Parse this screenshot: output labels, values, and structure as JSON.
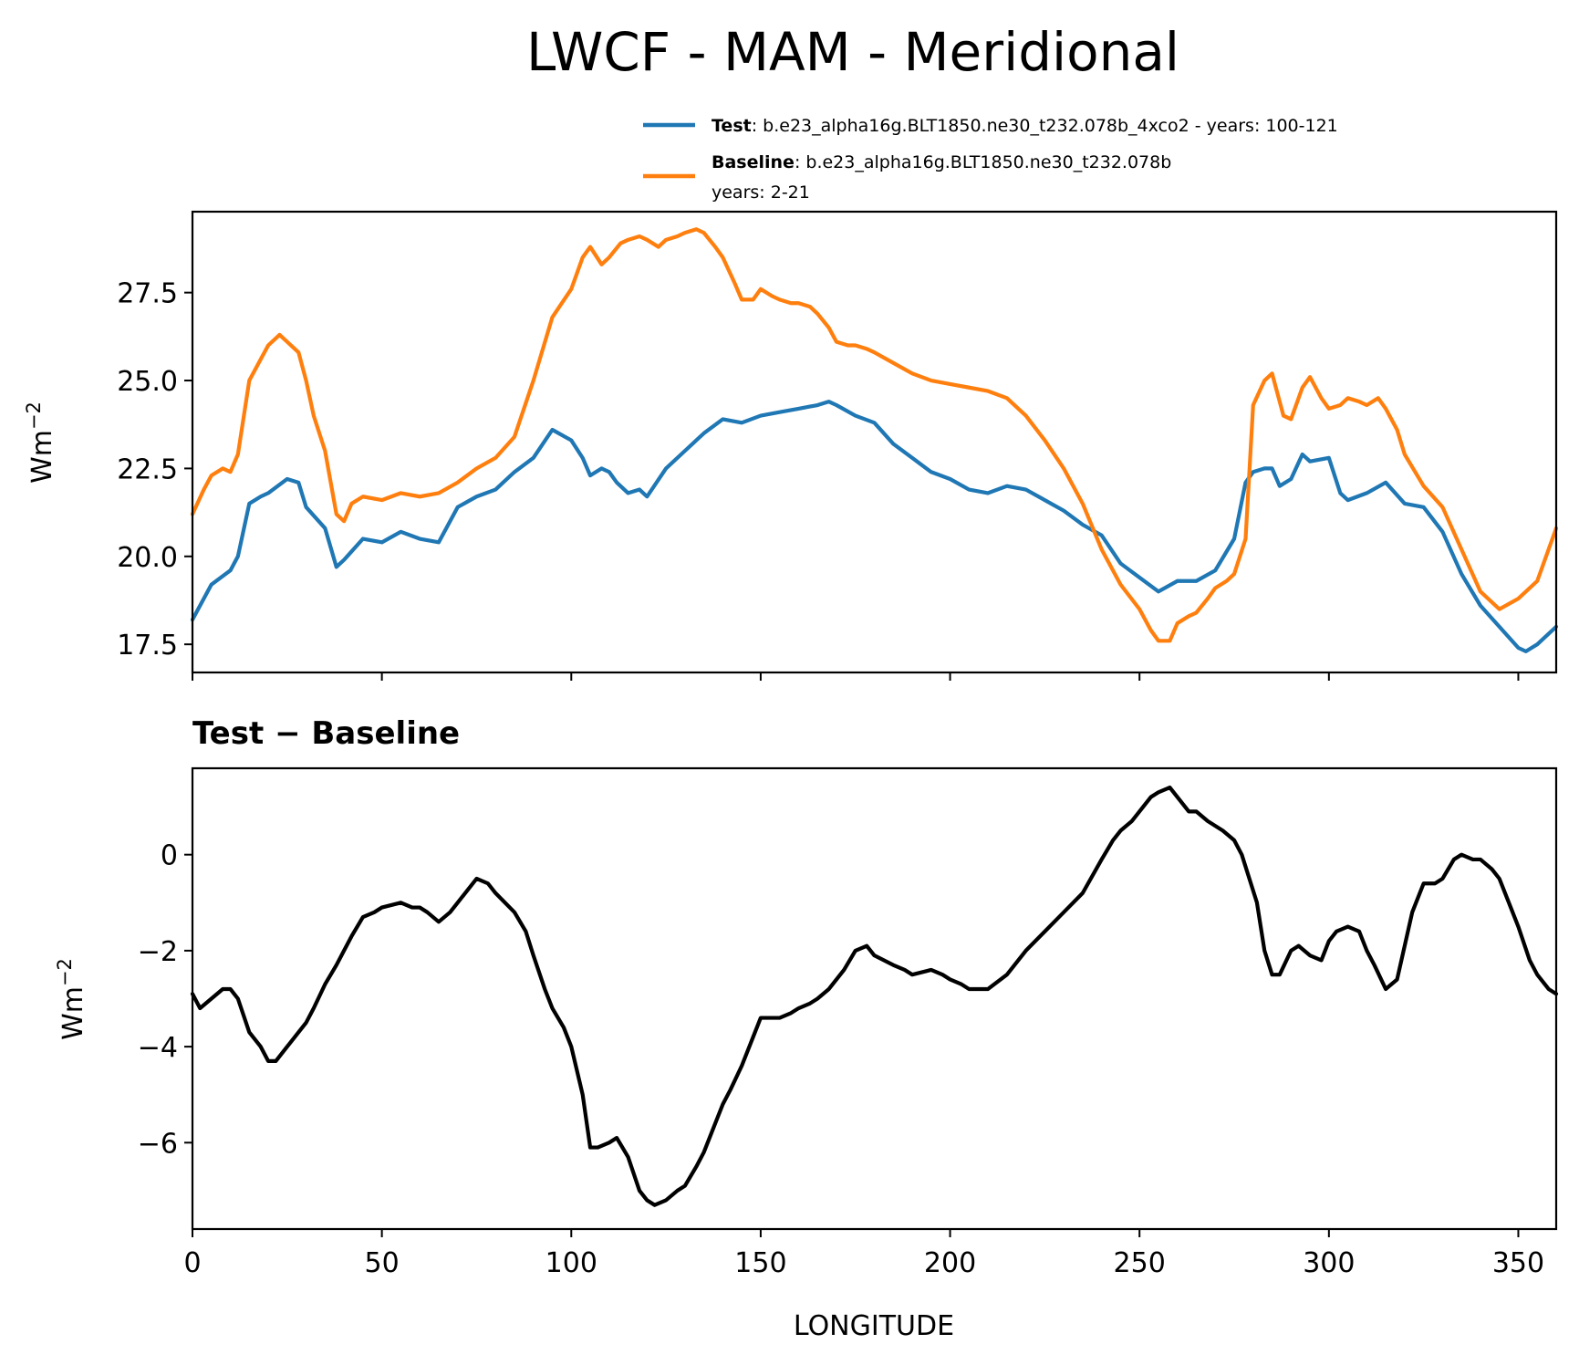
{
  "chart_data": [
    {
      "type": "line",
      "title": "LWCF - MAM - Meridional",
      "ylabel": "Wm",
      "ylabel_exponent": "−2",
      "xlim": [
        0,
        360
      ],
      "ylim": [
        16.7,
        29.8
      ],
      "yticks": [
        17.5,
        20.0,
        22.5,
        25.0,
        27.5
      ],
      "ytick_labels": [
        "17.5",
        "20.0",
        "22.5",
        "25.0",
        "27.5"
      ],
      "xticks": [
        0,
        50,
        100,
        150,
        200,
        250,
        300,
        350
      ],
      "legend": {
        "position": "above-right",
        "test_name": "Test",
        "test_text": ": b.e23_alpha16g.BLT1850.ne30_t232.078b_4xco2 - years: 100-121",
        "baseline_name": "Baseline",
        "baseline_text": ": b.e23_alpha16g.BLT1850.ne30_t232.078b",
        "baseline_text2": "years: 2-21"
      },
      "series": [
        {
          "name": "Test",
          "color": "#1f77b4",
          "x": [
            0,
            5,
            10,
            12,
            15,
            18,
            20,
            25,
            28,
            30,
            35,
            38,
            40,
            45,
            50,
            55,
            60,
            65,
            70,
            75,
            80,
            85,
            90,
            95,
            100,
            103,
            105,
            108,
            110,
            112,
            115,
            118,
            120,
            125,
            130,
            135,
            140,
            145,
            150,
            155,
            160,
            165,
            168,
            170,
            175,
            180,
            185,
            190,
            195,
            200,
            205,
            210,
            215,
            220,
            225,
            230,
            235,
            240,
            245,
            250,
            255,
            260,
            265,
            270,
            275,
            278,
            280,
            283,
            285,
            287,
            290,
            293,
            295,
            300,
            303,
            305,
            310,
            315,
            320,
            325,
            330,
            335,
            340,
            345,
            350,
            352,
            355,
            360
          ],
          "values": [
            18.2,
            19.2,
            19.6,
            20.0,
            21.5,
            21.7,
            21.8,
            22.2,
            22.1,
            21.4,
            20.8,
            19.7,
            19.9,
            20.5,
            20.4,
            20.7,
            20.5,
            20.4,
            21.4,
            21.7,
            21.9,
            22.4,
            22.8,
            23.6,
            23.3,
            22.8,
            22.3,
            22.5,
            22.4,
            22.1,
            21.8,
            21.9,
            21.7,
            22.5,
            23.0,
            23.5,
            23.9,
            23.8,
            24.0,
            24.1,
            24.2,
            24.3,
            24.4,
            24.3,
            24.0,
            23.8,
            23.2,
            22.8,
            22.4,
            22.2,
            21.9,
            21.8,
            22.0,
            21.9,
            21.6,
            21.3,
            20.9,
            20.6,
            19.8,
            19.4,
            19.0,
            19.3,
            19.3,
            19.6,
            20.5,
            22.1,
            22.4,
            22.5,
            22.5,
            22.0,
            22.2,
            22.9,
            22.7,
            22.8,
            21.8,
            21.6,
            21.8,
            22.1,
            21.5,
            21.4,
            20.7,
            19.5,
            18.6,
            18.0,
            17.4,
            17.3,
            17.5,
            18.0
          ]
        },
        {
          "name": "Baseline",
          "color": "#ff7f0e",
          "x": [
            0,
            3,
            5,
            8,
            10,
            12,
            15,
            18,
            20,
            23,
            25,
            28,
            30,
            32,
            35,
            38,
            40,
            42,
            45,
            50,
            55,
            60,
            65,
            70,
            75,
            80,
            85,
            90,
            95,
            100,
            103,
            105,
            108,
            110,
            113,
            115,
            118,
            120,
            123,
            125,
            128,
            130,
            133,
            135,
            138,
            140,
            143,
            145,
            148,
            150,
            153,
            155,
            158,
            160,
            163,
            165,
            168,
            170,
            173,
            175,
            178,
            180,
            185,
            190,
            195,
            200,
            205,
            210,
            215,
            220,
            225,
            230,
            235,
            240,
            245,
            250,
            253,
            255,
            258,
            260,
            263,
            265,
            268,
            270,
            273,
            275,
            278,
            280,
            283,
            285,
            288,
            290,
            293,
            295,
            298,
            300,
            303,
            305,
            308,
            310,
            313,
            315,
            318,
            320,
            325,
            330,
            335,
            340,
            345,
            350,
            355,
            360
          ],
          "values": [
            21.2,
            21.9,
            22.3,
            22.5,
            22.4,
            22.9,
            25.0,
            25.6,
            26.0,
            26.3,
            26.1,
            25.8,
            25.0,
            24.0,
            23.0,
            21.2,
            21.0,
            21.5,
            21.7,
            21.6,
            21.8,
            21.7,
            21.8,
            22.1,
            22.5,
            22.8,
            23.4,
            25.0,
            26.8,
            27.6,
            28.5,
            28.8,
            28.3,
            28.5,
            28.9,
            29.0,
            29.1,
            29.0,
            28.8,
            29.0,
            29.1,
            29.2,
            29.3,
            29.2,
            28.8,
            28.5,
            27.8,
            27.3,
            27.3,
            27.6,
            27.4,
            27.3,
            27.2,
            27.2,
            27.1,
            26.9,
            26.5,
            26.1,
            26.0,
            26.0,
            25.9,
            25.8,
            25.5,
            25.2,
            25.0,
            24.9,
            24.8,
            24.7,
            24.5,
            24.0,
            23.3,
            22.5,
            21.5,
            20.2,
            19.2,
            18.5,
            17.9,
            17.6,
            17.6,
            18.1,
            18.3,
            18.4,
            18.8,
            19.1,
            19.3,
            19.5,
            20.5,
            24.3,
            25.0,
            25.2,
            24.0,
            23.9,
            24.8,
            25.1,
            24.5,
            24.2,
            24.3,
            24.5,
            24.4,
            24.3,
            24.5,
            24.2,
            23.6,
            22.9,
            22.0,
            21.4,
            20.2,
            19.0,
            18.5,
            18.8,
            19.3,
            20.8
          ]
        }
      ]
    },
    {
      "type": "line",
      "title": "Test − Baseline",
      "xlabel": "LONGITUDE",
      "ylabel": "Wm",
      "ylabel_exponent": "−2",
      "xlim": [
        0,
        360
      ],
      "ylim": [
        -7.8,
        1.8
      ],
      "yticks": [
        -6,
        -4,
        -2,
        0
      ],
      "ytick_labels": [
        "−6",
        "−4",
        "−2",
        "0"
      ],
      "xticks": [
        0,
        50,
        100,
        150,
        200,
        250,
        300,
        350
      ],
      "xtick_labels": [
        "0",
        "50",
        "100",
        "150",
        "200",
        "250",
        "300",
        "350"
      ],
      "series": [
        {
          "name": "Test − Baseline",
          "color": "#000000",
          "x": [
            0,
            2,
            5,
            8,
            10,
            12,
            15,
            18,
            20,
            22,
            25,
            28,
            30,
            32,
            35,
            38,
            40,
            42,
            45,
            48,
            50,
            55,
            58,
            60,
            62,
            65,
            68,
            70,
            72,
            75,
            78,
            80,
            85,
            88,
            90,
            93,
            95,
            98,
            100,
            103,
            105,
            107,
            110,
            112,
            115,
            118,
            120,
            122,
            125,
            128,
            130,
            133,
            135,
            138,
            140,
            142,
            145,
            148,
            150,
            152,
            155,
            158,
            160,
            163,
            165,
            168,
            170,
            172,
            175,
            178,
            180,
            185,
            188,
            190,
            195,
            198,
            200,
            203,
            205,
            208,
            210,
            215,
            220,
            225,
            230,
            235,
            240,
            243,
            245,
            248,
            250,
            253,
            255,
            258,
            260,
            263,
            265,
            268,
            270,
            272,
            275,
            277,
            279,
            281,
            283,
            285,
            287,
            290,
            292,
            295,
            298,
            300,
            302,
            305,
            308,
            310,
            312,
            315,
            318,
            320,
            322,
            325,
            328,
            330,
            333,
            335,
            338,
            340,
            343,
            345,
            348,
            350,
            353,
            355,
            358,
            360
          ],
          "values": [
            -2.9,
            -3.2,
            -3.0,
            -2.8,
            -2.8,
            -3.0,
            -3.7,
            -4.0,
            -4.3,
            -4.3,
            -4.0,
            -3.7,
            -3.5,
            -3.2,
            -2.7,
            -2.3,
            -2.0,
            -1.7,
            -1.3,
            -1.2,
            -1.1,
            -1.0,
            -1.1,
            -1.1,
            -1.2,
            -1.4,
            -1.2,
            -1.0,
            -0.8,
            -0.5,
            -0.6,
            -0.8,
            -1.2,
            -1.6,
            -2.1,
            -2.8,
            -3.2,
            -3.6,
            -4.0,
            -5.0,
            -6.1,
            -6.1,
            -6.0,
            -5.9,
            -6.3,
            -7.0,
            -7.2,
            -7.3,
            -7.2,
            -7.0,
            -6.9,
            -6.5,
            -6.2,
            -5.6,
            -5.2,
            -4.9,
            -4.4,
            -3.8,
            -3.4,
            -3.4,
            -3.4,
            -3.3,
            -3.2,
            -3.1,
            -3.0,
            -2.8,
            -2.6,
            -2.4,
            -2.0,
            -1.9,
            -2.1,
            -2.3,
            -2.4,
            -2.5,
            -2.4,
            -2.5,
            -2.6,
            -2.7,
            -2.8,
            -2.8,
            -2.8,
            -2.5,
            -2.0,
            -1.6,
            -1.2,
            -0.8,
            -0.1,
            0.3,
            0.5,
            0.7,
            0.9,
            1.2,
            1.3,
            1.4,
            1.2,
            0.9,
            0.9,
            0.7,
            0.6,
            0.5,
            0.3,
            0.0,
            -0.5,
            -1.0,
            -2.0,
            -2.5,
            -2.5,
            -2.0,
            -1.9,
            -2.1,
            -2.2,
            -1.8,
            -1.6,
            -1.5,
            -1.6,
            -2.0,
            -2.3,
            -2.8,
            -2.6,
            -1.9,
            -1.2,
            -0.6,
            -0.6,
            -0.5,
            -0.1,
            0.0,
            -0.1,
            -0.1,
            -0.3,
            -0.5,
            -1.1,
            -1.5,
            -2.2,
            -2.5,
            -2.8,
            -2.9
          ]
        }
      ]
    }
  ]
}
